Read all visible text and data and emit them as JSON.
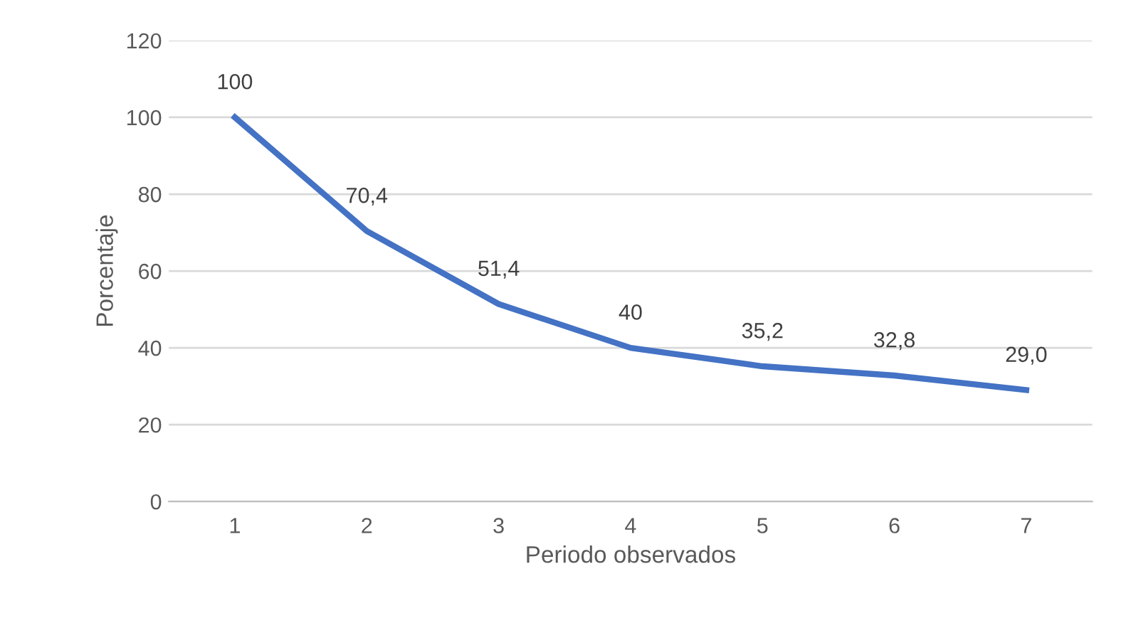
{
  "chart_data": {
    "type": "line",
    "xlabel": "Periodo observados",
    "ylabel": "Porcentaje",
    "categories": [
      "1",
      "2",
      "3",
      "4",
      "5",
      "6",
      "7"
    ],
    "series": [
      {
        "color": "#4472c4",
        "values": [
          100,
          70.4,
          51.4,
          40,
          35.2,
          32.8,
          29.0
        ],
        "value_labels": [
          "100",
          "70,4",
          "51,4",
          "40",
          "35,2",
          "32,8",
          "29,0"
        ]
      }
    ],
    "ylim": [
      0,
      120
    ],
    "yticks": [
      0,
      20,
      40,
      60,
      80,
      100,
      120
    ],
    "grid": "y",
    "marker": "none",
    "line_style": "solid"
  }
}
